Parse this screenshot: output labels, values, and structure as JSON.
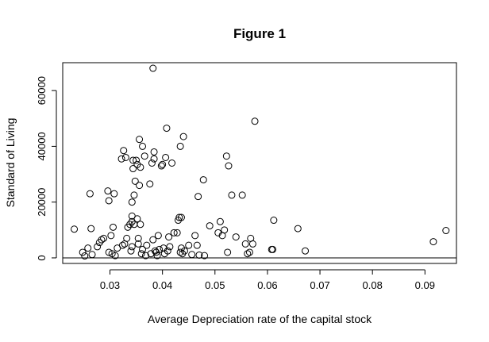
{
  "chart_data": {
    "type": "scatter",
    "title": "Figure 1",
    "xlabel": "Average Depreciation rate of the capital stock",
    "ylabel": "Standard of Living",
    "xlim": [
      0.021,
      0.096
    ],
    "ylim": [
      -2000,
      70000
    ],
    "xticks": [
      {
        "value": 0.03,
        "label": "0.03"
      },
      {
        "value": 0.04,
        "label": "0.04"
      },
      {
        "value": 0.05,
        "label": "0.05"
      },
      {
        "value": 0.06,
        "label": "0.06"
      },
      {
        "value": 0.07,
        "label": "0.07"
      },
      {
        "value": 0.08,
        "label": "0.08"
      },
      {
        "value": 0.09,
        "label": "0.09"
      }
    ],
    "yticks": [
      {
        "value": 0,
        "label": "0"
      },
      {
        "value": 20000,
        "label": "20000"
      },
      {
        "value": 40000,
        "label": "40000"
      },
      {
        "value": 60000,
        "label": "60000"
      }
    ],
    "hline": 0,
    "grid": false,
    "points": [
      [
        0.0232,
        10300
      ],
      [
        0.0248,
        2000
      ],
      [
        0.0252,
        700
      ],
      [
        0.0258,
        3500
      ],
      [
        0.0262,
        23000
      ],
      [
        0.0264,
        10500
      ],
      [
        0.0266,
        1200
      ],
      [
        0.0276,
        4000
      ],
      [
        0.028,
        5500
      ],
      [
        0.0284,
        6500
      ],
      [
        0.0288,
        7000
      ],
      [
        0.0296,
        24000
      ],
      [
        0.0298,
        20500
      ],
      [
        0.0298,
        2000
      ],
      [
        0.0302,
        8000
      ],
      [
        0.0304,
        1500
      ],
      [
        0.0306,
        11000
      ],
      [
        0.0308,
        23000
      ],
      [
        0.031,
        800
      ],
      [
        0.0314,
        3500
      ],
      [
        0.0322,
        35500
      ],
      [
        0.0324,
        4500
      ],
      [
        0.0326,
        38500
      ],
      [
        0.0328,
        5000
      ],
      [
        0.033,
        36000
      ],
      [
        0.0332,
        7000
      ],
      [
        0.0334,
        11000
      ],
      [
        0.0338,
        12000
      ],
      [
        0.034,
        2500
      ],
      [
        0.0342,
        4000
      ],
      [
        0.0342,
        15000
      ],
      [
        0.0342,
        13000
      ],
      [
        0.0342,
        20000
      ],
      [
        0.0344,
        35000
      ],
      [
        0.0344,
        32000
      ],
      [
        0.0346,
        22500
      ],
      [
        0.0346,
        12000
      ],
      [
        0.0348,
        27500
      ],
      [
        0.035,
        35000
      ],
      [
        0.0352,
        33500
      ],
      [
        0.0352,
        14000
      ],
      [
        0.0354,
        5000
      ],
      [
        0.0354,
        7000
      ],
      [
        0.0356,
        26000
      ],
      [
        0.0356,
        42500
      ],
      [
        0.0358,
        32500
      ],
      [
        0.0358,
        12000
      ],
      [
        0.036,
        1500
      ],
      [
        0.0362,
        40000
      ],
      [
        0.0362,
        3000
      ],
      [
        0.0366,
        36500
      ],
      [
        0.0368,
        800
      ],
      [
        0.037,
        4500
      ],
      [
        0.0376,
        26500
      ],
      [
        0.0378,
        1500
      ],
      [
        0.038,
        34000
      ],
      [
        0.0382,
        68000
      ],
      [
        0.0382,
        6500
      ],
      [
        0.0384,
        38000
      ],
      [
        0.0384,
        35500
      ],
      [
        0.0386,
        2500
      ],
      [
        0.0388,
        2000
      ],
      [
        0.039,
        800
      ],
      [
        0.0392,
        8000
      ],
      [
        0.0394,
        3000
      ],
      [
        0.0398,
        33000
      ],
      [
        0.04,
        33500
      ],
      [
        0.0402,
        3500
      ],
      [
        0.0404,
        1500
      ],
      [
        0.0406,
        36000
      ],
      [
        0.0408,
        46500
      ],
      [
        0.041,
        2500
      ],
      [
        0.0412,
        7500
      ],
      [
        0.0414,
        4000
      ],
      [
        0.0418,
        34000
      ],
      [
        0.0422,
        9000
      ],
      [
        0.0428,
        9000
      ],
      [
        0.043,
        13500
      ],
      [
        0.0432,
        14500
      ],
      [
        0.0434,
        2000
      ],
      [
        0.0434,
        40000
      ],
      [
        0.0436,
        3500
      ],
      [
        0.0436,
        14500
      ],
      [
        0.0438,
        1500
      ],
      [
        0.044,
        43500
      ],
      [
        0.0442,
        2500
      ],
      [
        0.045,
        4500
      ],
      [
        0.0456,
        1200
      ],
      [
        0.0462,
        8000
      ],
      [
        0.0466,
        4500
      ],
      [
        0.0468,
        22000
      ],
      [
        0.047,
        1000
      ],
      [
        0.0478,
        28000
      ],
      [
        0.048,
        800
      ],
      [
        0.049,
        11500
      ],
      [
        0.0506,
        9000
      ],
      [
        0.051,
        13000
      ],
      [
        0.0514,
        8000
      ],
      [
        0.0518,
        10000
      ],
      [
        0.0522,
        36500
      ],
      [
        0.0524,
        2000
      ],
      [
        0.0526,
        33000
      ],
      [
        0.0532,
        22500
      ],
      [
        0.054,
        7500
      ],
      [
        0.0552,
        22500
      ],
      [
        0.0558,
        5000
      ],
      [
        0.0562,
        1500
      ],
      [
        0.0566,
        2000
      ],
      [
        0.0568,
        7000
      ],
      [
        0.0572,
        5000
      ],
      [
        0.0576,
        49000
      ],
      [
        0.0608,
        3000
      ],
      [
        0.061,
        3000
      ],
      [
        0.0612,
        13500
      ],
      [
        0.0658,
        10500
      ],
      [
        0.0672,
        2500
      ],
      [
        0.0916,
        5800
      ],
      [
        0.094,
        9800
      ]
    ]
  }
}
